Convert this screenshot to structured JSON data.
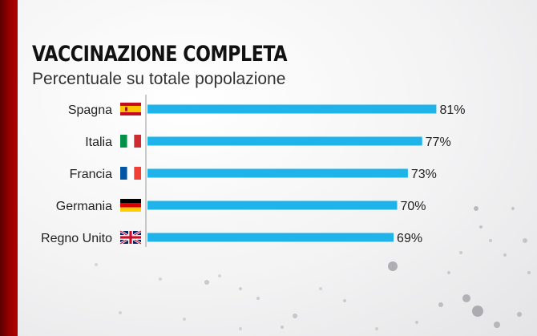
{
  "header": {
    "title": "VACCINAZIONE COMPLETA",
    "subtitle": "Percentuale su totale popolazione"
  },
  "colors": {
    "bar": "#1eb4ea",
    "accent": "#9a0000"
  },
  "chart_data": {
    "type": "bar",
    "orientation": "horizontal",
    "title": "VACCINAZIONE COMPLETA",
    "subtitle": "Percentuale su totale popolazione",
    "categories": [
      "Spagna",
      "Italia",
      "Francia",
      "Germania",
      "Regno Unito"
    ],
    "values": [
      81,
      77,
      73,
      70,
      69
    ],
    "value_labels": [
      "81%",
      "77%",
      "73%",
      "70%",
      "69%"
    ],
    "flags": [
      "spain-flag-icon",
      "italy-flag-icon",
      "france-flag-icon",
      "germany-flag-icon",
      "uk-flag-icon"
    ],
    "xlim": [
      0,
      100
    ],
    "grid": false,
    "legend": "none"
  }
}
